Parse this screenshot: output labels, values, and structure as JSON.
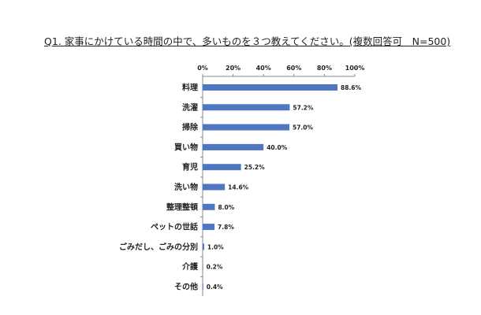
{
  "chart_data": {
    "type": "bar",
    "orientation": "horizontal",
    "title": "Q1. 家事にかけている時間の中で、多いものを３つ教えてください。(複数回答可　N=500)",
    "categories": [
      "料理",
      "洗濯",
      "掃除",
      "買い物",
      "育児",
      "洗い物",
      "整理整頓",
      "ペットの世話",
      "ごみだし、ごみの分別",
      "介護",
      "その他"
    ],
    "values": [
      88.6,
      57.2,
      57.0,
      40.0,
      25.2,
      14.6,
      8.0,
      7.8,
      1.0,
      0.2,
      0.4
    ],
    "value_labels": [
      "88.6%",
      "57.2%",
      "57.0%",
      "40.0%",
      "25.2%",
      "14.6%",
      "8.0%",
      "7.8%",
      "1.0%",
      "0.2%",
      "0.4%"
    ],
    "xlim": [
      0,
      100
    ],
    "x_ticks": [
      0,
      20,
      40,
      60,
      80,
      100
    ],
    "x_tick_labels": [
      "0%",
      "20%",
      "40%",
      "60%",
      "80%",
      "100%"
    ],
    "axis_position": "top",
    "grid": false,
    "legend": false,
    "bar_color": "#4f76c0"
  }
}
